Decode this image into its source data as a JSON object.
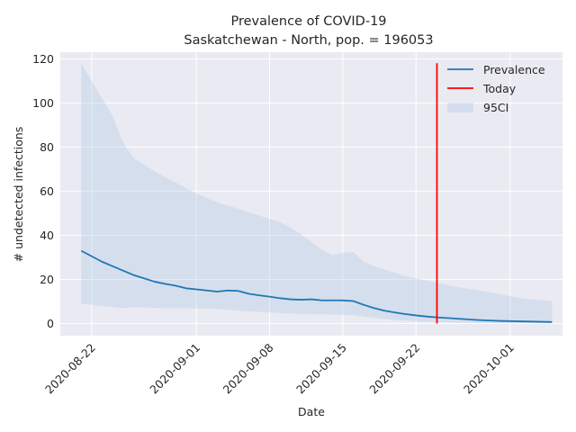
{
  "chart_data": {
    "type": "line",
    "title": "Prevalence of COVID-19",
    "subtitle": "Saskatchewan - North, pop. = 196053",
    "xlabel": "Date",
    "ylabel": "# undetected infections",
    "x_start": "2020-08-19",
    "x_end": "2020-10-06",
    "ylim": [
      -5.5,
      123
    ],
    "x_ticks": [
      "2020-08-22",
      "2020-09-01",
      "2020-09-08",
      "2020-09-15",
      "2020-09-22",
      "2020-10-01"
    ],
    "y_ticks": [
      0,
      20,
      40,
      60,
      80,
      100,
      120
    ],
    "grid": true,
    "legend_position": "top-right",
    "series": [
      {
        "name": "Prevalence",
        "type": "line",
        "color": "#1f77b4",
        "points": [
          [
            "2020-08-21",
            33.0
          ],
          [
            "2020-08-22",
            30.5
          ],
          [
            "2020-08-23",
            28.0
          ],
          [
            "2020-08-24",
            26.0
          ],
          [
            "2020-08-25",
            24.0
          ],
          [
            "2020-08-26",
            22.0
          ],
          [
            "2020-08-27",
            20.5
          ],
          [
            "2020-08-28",
            19.0
          ],
          [
            "2020-08-29",
            18.0
          ],
          [
            "2020-08-30",
            17.2
          ],
          [
            "2020-08-31",
            16.0
          ],
          [
            "2020-09-01",
            15.5
          ],
          [
            "2020-09-02",
            15.0
          ],
          [
            "2020-09-03",
            14.5
          ],
          [
            "2020-09-04",
            15.0
          ],
          [
            "2020-09-05",
            14.8
          ],
          [
            "2020-09-06",
            13.5
          ],
          [
            "2020-09-07",
            12.8
          ],
          [
            "2020-09-08",
            12.2
          ],
          [
            "2020-09-09",
            11.5
          ],
          [
            "2020-09-10",
            11.0
          ],
          [
            "2020-09-11",
            10.8
          ],
          [
            "2020-09-12",
            11.0
          ],
          [
            "2020-09-13",
            10.5
          ],
          [
            "2020-09-14",
            10.5
          ],
          [
            "2020-09-15",
            10.5
          ],
          [
            "2020-09-16",
            10.2
          ],
          [
            "2020-09-17",
            8.5
          ],
          [
            "2020-09-18",
            7.0
          ],
          [
            "2020-09-19",
            5.8
          ],
          [
            "2020-09-20",
            5.0
          ],
          [
            "2020-09-21",
            4.3
          ],
          [
            "2020-09-22",
            3.7
          ],
          [
            "2020-09-23",
            3.2
          ],
          [
            "2020-09-24",
            2.8
          ],
          [
            "2020-09-25",
            2.5
          ],
          [
            "2020-09-26",
            2.2
          ],
          [
            "2020-09-27",
            1.9
          ],
          [
            "2020-09-28",
            1.6
          ],
          [
            "2020-09-29",
            1.4
          ],
          [
            "2020-09-30",
            1.2
          ],
          [
            "2020-10-01",
            1.1
          ],
          [
            "2020-10-02",
            1.0
          ],
          [
            "2020-10-03",
            0.9
          ],
          [
            "2020-10-04",
            0.8
          ],
          [
            "2020-10-05",
            0.7
          ]
        ]
      },
      {
        "name": "Today",
        "type": "vline",
        "color": "#ff0000",
        "x": "2020-09-24",
        "y_range": [
          0,
          118
        ]
      },
      {
        "name": "95CI",
        "type": "band",
        "color": "#b0c8e6",
        "points": [
          [
            "2020-08-21",
            9.0,
            118.0
          ],
          [
            "2020-08-22",
            8.5,
            110.0
          ],
          [
            "2020-08-23",
            8.0,
            102.0
          ],
          [
            "2020-08-24",
            7.5,
            94.0
          ],
          [
            "2020-08-25",
            7.0,
            82.0
          ],
          [
            "2020-08-26",
            7.5,
            75.0
          ],
          [
            "2020-08-27",
            7.3,
            72.0
          ],
          [
            "2020-08-28",
            7.1,
            69.0
          ],
          [
            "2020-08-29",
            7.0,
            66.5
          ],
          [
            "2020-08-30",
            7.0,
            64.0
          ],
          [
            "2020-08-31",
            7.0,
            61.5
          ],
          [
            "2020-09-01",
            6.9,
            59.0
          ],
          [
            "2020-09-02",
            6.8,
            57.0
          ],
          [
            "2020-09-03",
            6.7,
            55.0
          ],
          [
            "2020-09-04",
            6.3,
            53.5
          ],
          [
            "2020-09-05",
            5.8,
            52.0
          ],
          [
            "2020-09-06",
            5.5,
            50.5
          ],
          [
            "2020-09-07",
            5.3,
            49.0
          ],
          [
            "2020-09-08",
            5.0,
            47.5
          ],
          [
            "2020-09-09",
            4.8,
            46.0
          ],
          [
            "2020-09-10",
            4.6,
            43.5
          ],
          [
            "2020-09-11",
            4.4,
            40.5
          ],
          [
            "2020-09-12",
            4.3,
            37.0
          ],
          [
            "2020-09-13",
            4.2,
            33.5
          ],
          [
            "2020-09-14",
            4.1,
            31.0
          ],
          [
            "2020-09-15",
            4.0,
            32.0
          ],
          [
            "2020-09-16",
            3.8,
            32.5
          ],
          [
            "2020-09-17",
            3.2,
            28.0
          ],
          [
            "2020-09-18",
            2.6,
            26.0
          ],
          [
            "2020-09-19",
            2.1,
            24.5
          ],
          [
            "2020-09-20",
            1.7,
            23.0
          ],
          [
            "2020-09-21",
            1.3,
            21.5
          ],
          [
            "2020-09-22",
            1.0,
            20.5
          ],
          [
            "2020-09-23",
            0.8,
            19.5
          ],
          [
            "2020-09-24",
            0.6,
            18.5
          ],
          [
            "2020-09-25",
            0.5,
            17.5
          ],
          [
            "2020-09-26",
            0.4,
            16.5
          ],
          [
            "2020-09-27",
            0.3,
            15.7
          ],
          [
            "2020-09-28",
            0.25,
            15.0
          ],
          [
            "2020-09-29",
            0.2,
            14.2
          ],
          [
            "2020-09-30",
            0.15,
            13.3
          ],
          [
            "2020-10-01",
            0.1,
            12.4
          ],
          [
            "2020-10-02",
            0.1,
            11.6
          ],
          [
            "2020-10-03",
            0.1,
            11.0
          ],
          [
            "2020-10-04",
            0.1,
            10.6
          ],
          [
            "2020-10-05",
            0.1,
            10.2
          ]
        ]
      }
    ]
  }
}
